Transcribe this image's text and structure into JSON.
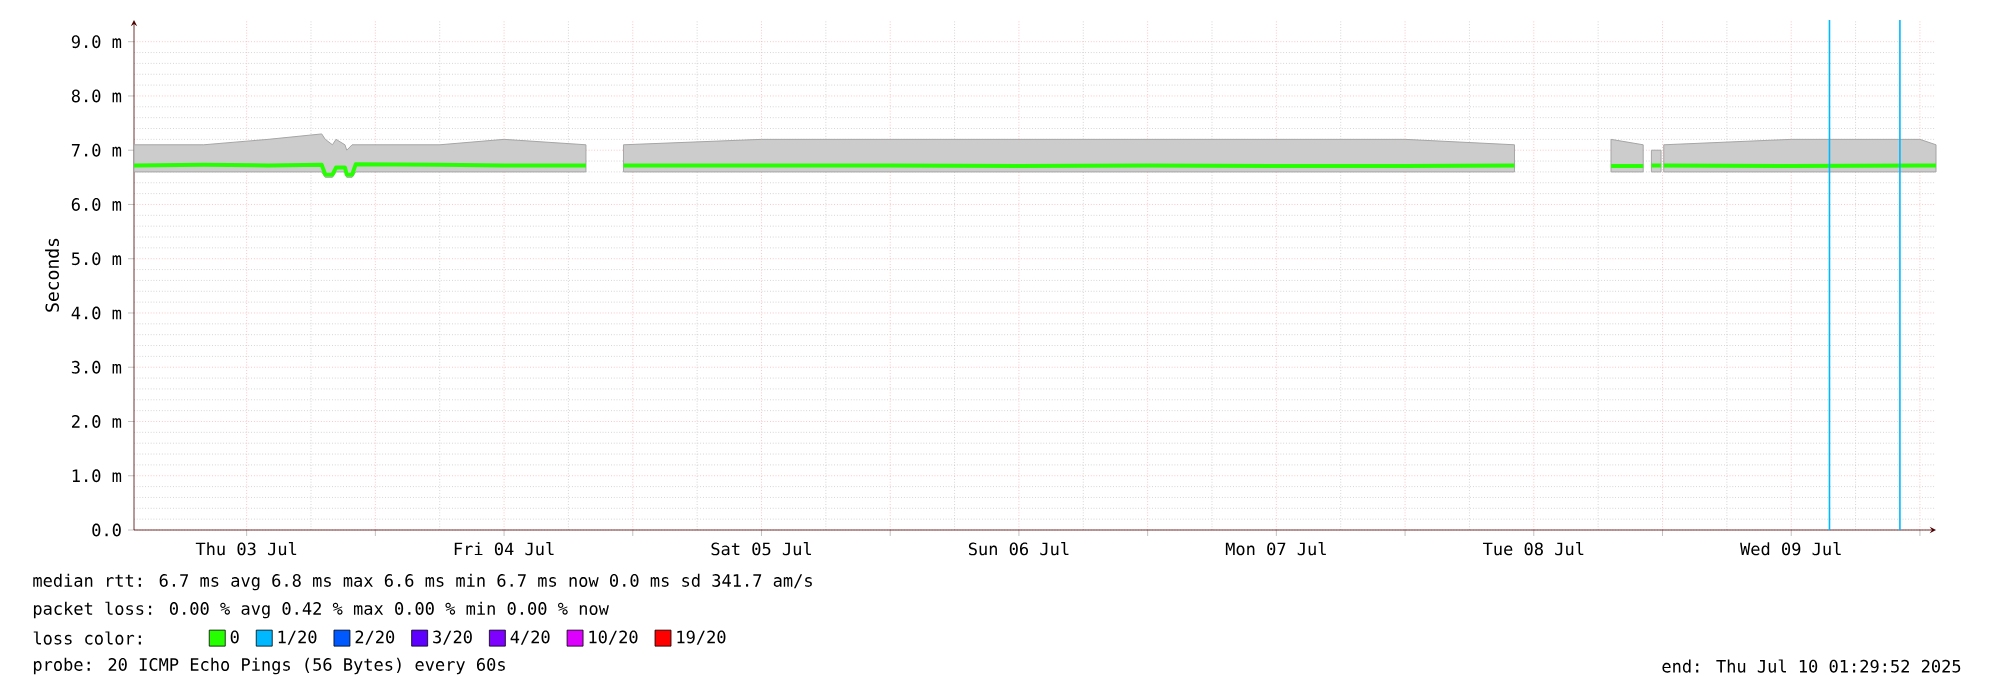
{
  "chart_data": {
    "type": "line",
    "ylabel": "Seconds",
    "legend_title": "loss color:",
    "legend": "bottom",
    "grid": true,
    "xlim": [
      "2025-07-03T01:30",
      "2025-07-10T01:30"
    ],
    "xticks": [
      {
        "value": "2025-07-03T12:00",
        "label": "Thu 03 Jul"
      },
      {
        "value": "2025-07-04T00:00",
        "label": null
      },
      {
        "value": "2025-07-04T12:00",
        "label": "Fri 04 Jul"
      },
      {
        "value": "2025-07-05T00:00",
        "label": null
      },
      {
        "value": "2025-07-05T12:00",
        "label": "Sat 05 Jul"
      },
      {
        "value": "2025-07-06T00:00",
        "label": null
      },
      {
        "value": "2025-07-06T12:00",
        "label": "Sun 06 Jul"
      },
      {
        "value": "2025-07-07T00:00",
        "label": null
      },
      {
        "value": "2025-07-07T12:00",
        "label": "Mon 07 Jul"
      },
      {
        "value": "2025-07-08T00:00",
        "label": null
      },
      {
        "value": "2025-07-08T12:00",
        "label": "Tue 08 Jul"
      },
      {
        "value": "2025-07-09T00:00",
        "label": null
      },
      {
        "value": "2025-07-09T12:00",
        "label": "Wed 09 Jul"
      },
      {
        "value": "2025-07-10T00:00",
        "label": null
      }
    ],
    "ylim": [
      0,
      9.4
    ],
    "yticks": [
      {
        "value": 0,
        "label": "0.0"
      },
      {
        "value": 1,
        "label": "1.0 m"
      },
      {
        "value": 2,
        "label": "2.0 m"
      },
      {
        "value": 3,
        "label": "3.0 m"
      },
      {
        "value": 4,
        "label": "4.0 m"
      },
      {
        "value": 5,
        "label": "5.0 m"
      },
      {
        "value": 6,
        "label": "6.0 m"
      },
      {
        "value": 7,
        "label": "7.0 m"
      },
      {
        "value": 8,
        "label": "8.0 m"
      },
      {
        "value": 9,
        "label": "9.0 m"
      }
    ],
    "x": [
      "2025-07-03T01:30",
      "2025-07-03T08:00",
      "2025-07-03T14:00",
      "2025-07-03T19:00",
      "2025-07-03T19:20",
      "2025-07-03T20:00",
      "2025-07-03T20:20",
      "2025-07-03T21:10",
      "2025-07-03T21:20",
      "2025-07-03T21:50",
      "2025-07-03T22:10",
      "2025-07-04T06:00",
      "2025-07-04T12:00",
      "2025-07-04T19:38",
      "2025-07-04T21:00",
      "2025-07-04T23:08",
      "2025-07-05T12:00",
      "2025-07-06T00:00",
      "2025-07-06T12:00",
      "2025-07-07T00:00",
      "2025-07-07T12:00",
      "2025-07-08T00:00",
      "2025-07-08T10:12",
      "2025-07-08T15:00",
      "2025-07-08T19:12",
      "2025-07-08T22:12",
      "2025-07-08T22:40",
      "2025-07-08T22:58",
      "2025-07-08T23:52",
      "2025-07-08T23:58",
      "2025-07-09T00:07",
      "2025-07-09T12:00",
      "2025-07-10T00:00",
      "2025-07-10T01:30"
    ],
    "series": [
      {
        "name": "0",
        "color": "#26ff00",
        "values": [
          6.72,
          6.73,
          6.72,
          6.73,
          6.55,
          6.55,
          6.68,
          6.68,
          6.55,
          6.55,
          6.74,
          6.73,
          6.72,
          6.72,
          null,
          6.72,
          6.72,
          6.72,
          6.71,
          6.72,
          6.71,
          6.71,
          6.72,
          null,
          6.71,
          6.71,
          null,
          6.72,
          6.72,
          null,
          6.72,
          6.71,
          6.72,
          6.72
        ],
        "lower": [
          6.6,
          6.6,
          6.6,
          6.6,
          6.5,
          6.5,
          6.6,
          6.6,
          6.5,
          6.5,
          6.6,
          6.6,
          6.6,
          6.6,
          null,
          6.6,
          6.6,
          6.6,
          6.6,
          6.6,
          6.6,
          6.6,
          6.6,
          null,
          6.6,
          6.6,
          null,
          6.6,
          6.6,
          null,
          6.6,
          6.6,
          6.6,
          6.6
        ],
        "upper": [
          7.1,
          7.1,
          7.2,
          7.3,
          7.2,
          7.1,
          7.2,
          7.1,
          7.0,
          7.1,
          7.1,
          7.1,
          7.2,
          7.1,
          null,
          7.1,
          7.2,
          7.2,
          7.2,
          7.2,
          7.2,
          7.2,
          7.1,
          null,
          7.2,
          7.1,
          null,
          7.0,
          7.0,
          null,
          7.1,
          7.2,
          7.2,
          7.1
        ]
      },
      {
        "name": "1/20",
        "color": "#00b8ff",
        "values": [
          null,
          null,
          null,
          null,
          null,
          null,
          null,
          null,
          null,
          null,
          null,
          null,
          null,
          null,
          null,
          null,
          null,
          null,
          null,
          null,
          null,
          null,
          null,
          null,
          null,
          null,
          null,
          null,
          null,
          null,
          null,
          null,
          null,
          null
        ]
      },
      {
        "name": "2/20",
        "color": "#0059ff",
        "values": [
          null,
          null,
          null,
          null,
          null,
          null,
          null,
          null,
          null,
          null,
          null,
          null,
          null,
          null,
          null,
          null,
          null,
          null,
          null,
          null,
          null,
          null,
          null,
          null,
          null,
          null,
          null,
          null,
          null,
          null,
          null,
          null,
          null,
          null
        ]
      },
      {
        "name": "3/20",
        "color": "#5e00ff",
        "values": [
          null,
          null,
          null,
          null,
          null,
          null,
          null,
          null,
          null,
          null,
          null,
          null,
          null,
          null,
          null,
          null,
          null,
          null,
          null,
          null,
          null,
          null,
          null,
          null,
          null,
          null,
          null,
          null,
          null,
          null,
          null,
          null,
          null,
          null
        ]
      },
      {
        "name": "4/20",
        "color": "#7e00ff",
        "values": [
          null,
          null,
          null,
          null,
          null,
          null,
          null,
          null,
          null,
          null,
          null,
          null,
          null,
          null,
          null,
          null,
          null,
          null,
          null,
          null,
          null,
          null,
          null,
          null,
          null,
          null,
          null,
          null,
          null,
          null,
          null,
          null,
          null,
          null
        ]
      },
      {
        "name": "10/20",
        "color": "#dd00ff",
        "values": [
          null,
          null,
          null,
          null,
          null,
          null,
          null,
          null,
          null,
          null,
          null,
          null,
          null,
          null,
          null,
          null,
          null,
          null,
          null,
          null,
          null,
          null,
          null,
          null,
          null,
          null,
          null,
          null,
          null,
          null,
          null,
          null,
          null,
          null
        ]
      },
      {
        "name": "19/20",
        "color": "#ff0000",
        "values": [
          null,
          null,
          null,
          null,
          null,
          null,
          null,
          null,
          null,
          null,
          null,
          null,
          null,
          null,
          null,
          null,
          null,
          null,
          null,
          null,
          null,
          null,
          null,
          null,
          null,
          null,
          null,
          null,
          null,
          null,
          null,
          null,
          null,
          null
        ]
      }
    ],
    "ref_lines": [
      {
        "axis": "x",
        "value": "2025-07-09T15:34",
        "color": "#00b8ff"
      },
      {
        "axis": "x",
        "value": "2025-07-09T22:08",
        "color": "#00b8ff"
      }
    ],
    "annotations": [
      "median rtt:  6.7 ms avg  6.8 ms max  6.6 ms min  6.7 ms now  0.0 ms sd  341.7   am/s",
      "packet loss: 0.00 % avg  0.42 % max  0.00 % min  0.00 % now",
      "probe:       20 ICMP Echo Pings (56 Bytes) every 60s",
      "end: Thu Jul 10 01:29:52 2025"
    ]
  }
}
